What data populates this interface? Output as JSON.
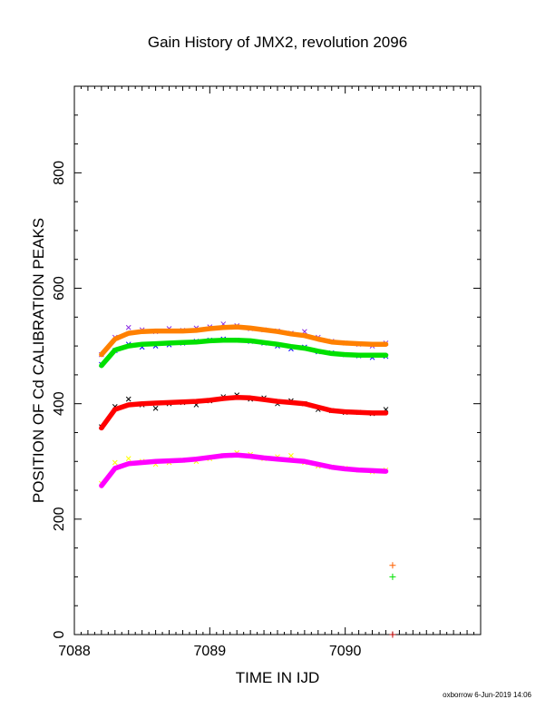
{
  "chart_data": {
    "type": "scatter",
    "title": "Gain History of JMX2, revolution 2096",
    "xlabel": "TIME IN IJD",
    "ylabel": "POSITION OF Cd CALIBRATION PEAKS",
    "xlim": [
      7088,
      7091
    ],
    "ylim": [
      0,
      950
    ],
    "x_ticks": [
      "7088",
      "7089",
      "7090"
    ],
    "y_ticks": [
      "0",
      "200",
      "400",
      "600",
      "800"
    ],
    "grid": false,
    "legend": "none",
    "series": [
      {
        "marker": "x",
        "color": "#8a2be2",
        "x": [
          7088.2,
          7088.3,
          7088.4,
          7088.5,
          7088.6,
          7088.7,
          7088.8,
          7088.9,
          7089.0,
          7089.1,
          7089.2,
          7089.3,
          7089.4,
          7089.5,
          7089.6,
          7089.7,
          7089.8,
          7089.9,
          7090.0,
          7090.1,
          7090.2,
          7090.3
        ],
        "y": [
          485,
          515,
          532,
          528,
          525,
          530,
          527,
          531,
          533,
          538,
          535,
          530,
          528,
          526,
          522,
          525,
          515,
          508,
          505,
          503,
          500,
          505
        ]
      },
      {
        "marker": "x",
        "color": "#0000ff",
        "x": [
          7088.2,
          7088.3,
          7088.4,
          7088.5,
          7088.6,
          7088.7,
          7088.8,
          7088.9,
          7089.0,
          7089.1,
          7089.2,
          7089.3,
          7089.4,
          7089.5,
          7089.6,
          7089.7,
          7089.8,
          7089.9,
          7090.0,
          7090.1,
          7090.2,
          7090.3
        ],
        "y": [
          468,
          492,
          503,
          498,
          500,
          502,
          505,
          508,
          510,
          512,
          510,
          508,
          505,
          500,
          495,
          498,
          490,
          488,
          485,
          483,
          480,
          482
        ]
      },
      {
        "marker": "x",
        "color": "#000000",
        "x": [
          7088.2,
          7088.3,
          7088.4,
          7088.5,
          7088.6,
          7088.7,
          7088.8,
          7088.9,
          7089.0,
          7089.1,
          7089.2,
          7089.3,
          7089.4,
          7089.5,
          7089.6,
          7089.7,
          7089.8,
          7089.9,
          7090.0,
          7090.1,
          7090.2,
          7090.3
        ],
        "y": [
          360,
          395,
          408,
          398,
          392,
          400,
          402,
          398,
          405,
          412,
          415,
          408,
          410,
          400,
          405,
          400,
          390,
          388,
          385,
          385,
          383,
          390
        ]
      },
      {
        "marker": "x",
        "color": "#ffff00",
        "x": [
          7088.2,
          7088.3,
          7088.4,
          7088.5,
          7088.6,
          7088.7,
          7088.8,
          7088.9,
          7089.0,
          7089.1,
          7089.2,
          7089.3,
          7089.4,
          7089.5,
          7089.6,
          7089.7,
          7089.8,
          7089.9,
          7090.0,
          7090.1,
          7090.2,
          7090.3
        ],
        "y": [
          262,
          298,
          305,
          300,
          295,
          298,
          302,
          300,
          305,
          310,
          315,
          312,
          305,
          308,
          310,
          298,
          292,
          290,
          288,
          285,
          282,
          285
        ]
      },
      {
        "marker": "line",
        "color": "#ff8000",
        "x": [
          7088.2,
          7088.3,
          7088.4,
          7088.5,
          7088.6,
          7088.7,
          7088.8,
          7088.9,
          7089.0,
          7089.1,
          7089.2,
          7089.3,
          7089.4,
          7089.5,
          7089.6,
          7089.7,
          7089.8,
          7089.9,
          7090.0,
          7090.1,
          7090.2,
          7090.3
        ],
        "y": [
          485,
          512,
          522,
          525,
          526,
          526,
          526,
          527,
          530,
          532,
          533,
          531,
          528,
          525,
          521,
          518,
          512,
          507,
          505,
          504,
          503,
          503
        ]
      },
      {
        "marker": "line",
        "color": "#00e000",
        "x": [
          7088.2,
          7088.3,
          7088.4,
          7088.5,
          7088.6,
          7088.7,
          7088.8,
          7088.9,
          7089.0,
          7089.1,
          7089.2,
          7089.3,
          7089.4,
          7089.5,
          7089.6,
          7089.7,
          7089.8,
          7089.9,
          7090.0,
          7090.1,
          7090.2,
          7090.3
        ],
        "y": [
          466,
          493,
          500,
          503,
          504,
          505,
          506,
          507,
          509,
          510,
          510,
          509,
          506,
          503,
          499,
          496,
          491,
          487,
          485,
          484,
          484,
          484
        ]
      },
      {
        "marker": "line",
        "color": "#ff0000",
        "x": [
          7088.2,
          7088.3,
          7088.4,
          7088.5,
          7088.6,
          7088.7,
          7088.8,
          7088.9,
          7089.0,
          7089.1,
          7089.2,
          7089.3,
          7089.4,
          7089.5,
          7089.6,
          7089.7,
          7089.8,
          7089.9,
          7090.0,
          7090.1,
          7090.2,
          7090.3
        ],
        "y": [
          358,
          390,
          398,
          400,
          401,
          402,
          403,
          404,
          406,
          409,
          411,
          410,
          407,
          404,
          402,
          400,
          394,
          388,
          386,
          385,
          384,
          384
        ]
      },
      {
        "marker": "line",
        "color": "#ff00ff",
        "x": [
          7088.2,
          7088.3,
          7088.4,
          7088.5,
          7088.6,
          7088.7,
          7088.8,
          7088.9,
          7089.0,
          7089.1,
          7089.2,
          7089.3,
          7089.4,
          7089.5,
          7089.6,
          7089.7,
          7089.8,
          7089.9,
          7090.0,
          7090.1,
          7090.2,
          7090.3
        ],
        "y": [
          258,
          288,
          296,
          298,
          300,
          301,
          302,
          304,
          307,
          310,
          311,
          309,
          306,
          304,
          302,
          300,
          295,
          290,
          287,
          285,
          284,
          283
        ]
      },
      {
        "marker": "+",
        "color": "#ff6000",
        "x": [
          7090.35
        ],
        "y": [
          120
        ]
      },
      {
        "marker": "+",
        "color": "#00e000",
        "x": [
          7090.35
        ],
        "y": [
          100
        ]
      },
      {
        "marker": "+",
        "color": "#c00000",
        "x": [
          7090.35
        ],
        "y": [
          0
        ]
      }
    ]
  },
  "footer": "oxborrow  6-Jun-2019 14:06"
}
